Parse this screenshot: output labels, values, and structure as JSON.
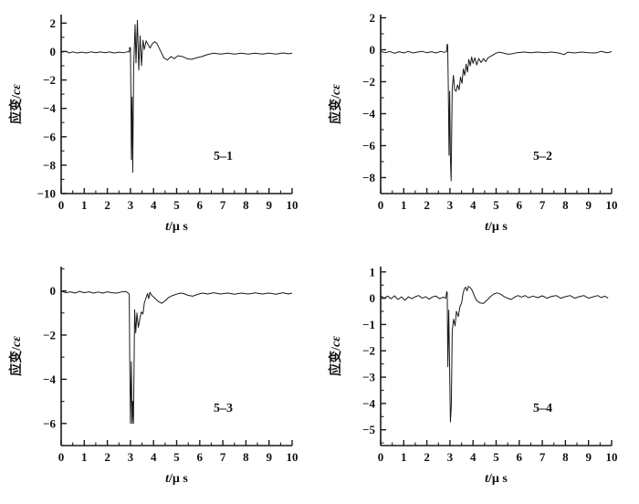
{
  "style": {
    "background": "#ffffff",
    "line_color": "#1a1a1a",
    "text_color": "#111111"
  },
  "figure_title": "",
  "chart_data": [
    {
      "type": "line",
      "label": "5–1",
      "ylabel": "应变/cε",
      "xlabel": "t/μ s",
      "xlim": [
        0,
        10
      ],
      "ylim": [
        -10,
        2.6
      ],
      "xticks": [
        0,
        1,
        2,
        3,
        4,
        5,
        6,
        7,
        8,
        9,
        10
      ],
      "x_minor_step": 0.5,
      "yticks": [
        2,
        0,
        -2,
        -4,
        -6,
        -8,
        -10
      ],
      "y_minor_ticks": [
        1,
        -1,
        -3,
        -5,
        -7,
        -9
      ],
      "grid": false,
      "legend": "none",
      "points": [
        [
          0,
          -0.05
        ],
        [
          0.2,
          0.02
        ],
        [
          0.35,
          -0.1
        ],
        [
          0.5,
          -0.02
        ],
        [
          0.7,
          -0.1
        ],
        [
          0.9,
          -0.04
        ],
        [
          1.1,
          -0.1
        ],
        [
          1.3,
          -0.02
        ],
        [
          1.5,
          -0.08
        ],
        [
          1.7,
          -0.03
        ],
        [
          1.9,
          -0.09
        ],
        [
          2.1,
          -0.03
        ],
        [
          2.3,
          -0.1
        ],
        [
          2.5,
          -0.04
        ],
        [
          2.7,
          -0.08
        ],
        [
          2.85,
          -0.02
        ],
        [
          2.95,
          -0.02
        ],
        [
          2.97,
          0.3
        ],
        [
          3.0,
          0.25
        ],
        [
          3.02,
          -3.1
        ],
        [
          3.04,
          -7.6
        ],
        [
          3.07,
          -3.2
        ],
        [
          3.1,
          -8.5
        ],
        [
          3.14,
          -1.2
        ],
        [
          3.2,
          1.9
        ],
        [
          3.24,
          -0.8
        ],
        [
          3.3,
          2.2
        ],
        [
          3.36,
          -1.3
        ],
        [
          3.42,
          1.1
        ],
        [
          3.48,
          -1.0
        ],
        [
          3.54,
          0.8
        ],
        [
          3.6,
          0.15
        ],
        [
          3.68,
          0.75
        ],
        [
          3.76,
          0.5
        ],
        [
          3.85,
          0.25
        ],
        [
          3.95,
          0.55
        ],
        [
          4.05,
          0.7
        ],
        [
          4.15,
          0.55
        ],
        [
          4.3,
          0.05
        ],
        [
          4.45,
          -0.45
        ],
        [
          4.6,
          -0.6
        ],
        [
          4.75,
          -0.35
        ],
        [
          4.9,
          -0.5
        ],
        [
          5.05,
          -0.3
        ],
        [
          5.25,
          -0.35
        ],
        [
          5.45,
          -0.5
        ],
        [
          5.65,
          -0.55
        ],
        [
          5.85,
          -0.45
        ],
        [
          6.1,
          -0.35
        ],
        [
          6.35,
          -0.2
        ],
        [
          6.6,
          -0.12
        ],
        [
          6.9,
          -0.18
        ],
        [
          7.2,
          -0.12
        ],
        [
          7.5,
          -0.18
        ],
        [
          7.8,
          -0.12
        ],
        [
          8.1,
          -0.18
        ],
        [
          8.4,
          -0.12
        ],
        [
          8.7,
          -0.18
        ],
        [
          9.0,
          -0.12
        ],
        [
          9.3,
          -0.18
        ],
        [
          9.6,
          -0.1
        ],
        [
          9.85,
          -0.16
        ],
        [
          10,
          -0.12
        ]
      ]
    },
    {
      "type": "line",
      "label": "5–2",
      "ylabel": "应变/cε",
      "xlabel": "t/μ s",
      "xlim": [
        0,
        10
      ],
      "ylim": [
        -9,
        2.2
      ],
      "xticks": [
        0,
        1,
        2,
        3,
        4,
        5,
        6,
        7,
        8,
        9,
        10
      ],
      "x_minor_step": 0.5,
      "yticks": [
        2,
        0,
        -2,
        -4,
        -6,
        -8
      ],
      "y_minor_ticks": [
        1,
        -1,
        -3,
        -5,
        -7,
        -9
      ],
      "grid": false,
      "legend": "none",
      "points": [
        [
          0,
          -0.1
        ],
        [
          0.2,
          -0.18
        ],
        [
          0.4,
          -0.1
        ],
        [
          0.6,
          -0.22
        ],
        [
          0.8,
          -0.12
        ],
        [
          1.0,
          -0.2
        ],
        [
          1.2,
          -0.1
        ],
        [
          1.4,
          -0.2
        ],
        [
          1.6,
          -0.14
        ],
        [
          1.8,
          -0.1
        ],
        [
          2.0,
          -0.18
        ],
        [
          2.2,
          -0.12
        ],
        [
          2.4,
          -0.2
        ],
        [
          2.6,
          -0.1
        ],
        [
          2.75,
          -0.16
        ],
        [
          2.85,
          -0.12
        ],
        [
          2.88,
          0.35
        ],
        [
          2.9,
          0.3
        ],
        [
          2.93,
          -2.3
        ],
        [
          2.96,
          -6.6
        ],
        [
          2.99,
          -2.6
        ],
        [
          3.02,
          -6.8
        ],
        [
          3.05,
          -8.2
        ],
        [
          3.1,
          -2.4
        ],
        [
          3.15,
          -1.6
        ],
        [
          3.2,
          -2.5
        ],
        [
          3.27,
          -2.6
        ],
        [
          3.33,
          -2.2
        ],
        [
          3.4,
          -2.5
        ],
        [
          3.46,
          -1.7
        ],
        [
          3.52,
          -2.1
        ],
        [
          3.58,
          -1.2
        ],
        [
          3.64,
          -1.6
        ],
        [
          3.7,
          -0.9
        ],
        [
          3.76,
          -1.4
        ],
        [
          3.82,
          -0.6
        ],
        [
          3.88,
          -1.0
        ],
        [
          3.94,
          -0.45
        ],
        [
          4.0,
          -0.85
        ],
        [
          4.08,
          -0.5
        ],
        [
          4.16,
          -0.95
        ],
        [
          4.25,
          -0.55
        ],
        [
          4.35,
          -0.8
        ],
        [
          4.45,
          -0.55
        ],
        [
          4.55,
          -0.75
        ],
        [
          4.65,
          -0.5
        ],
        [
          4.8,
          -0.38
        ],
        [
          4.95,
          -0.25
        ],
        [
          5.1,
          -0.15
        ],
        [
          5.3,
          -0.2
        ],
        [
          5.5,
          -0.28
        ],
        [
          5.7,
          -0.25
        ],
        [
          5.9,
          -0.18
        ],
        [
          6.2,
          -0.14
        ],
        [
          6.5,
          -0.18
        ],
        [
          6.8,
          -0.14
        ],
        [
          7.1,
          -0.18
        ],
        [
          7.4,
          -0.14
        ],
        [
          7.7,
          -0.2
        ],
        [
          7.95,
          -0.3
        ],
        [
          8.1,
          -0.15
        ],
        [
          8.4,
          -0.2
        ],
        [
          8.7,
          -0.14
        ],
        [
          9.0,
          -0.18
        ],
        [
          9.3,
          -0.2
        ],
        [
          9.55,
          -0.1
        ],
        [
          9.8,
          -0.18
        ],
        [
          10,
          -0.12
        ]
      ]
    },
    {
      "type": "line",
      "label": "5–3",
      "ylabel": "应变/cε",
      "xlabel": "t/μ s",
      "xlim": [
        0,
        10
      ],
      "ylim": [
        -7,
        1.1
      ],
      "xticks": [
        0,
        1,
        2,
        3,
        4,
        5,
        6,
        7,
        8,
        9,
        10
      ],
      "x_minor_step": 0.5,
      "yticks": [
        0,
        -2,
        -4,
        -6
      ],
      "y_minor_ticks": [
        1,
        -1,
        -3,
        -5,
        -7
      ],
      "grid": false,
      "legend": "none",
      "points": [
        [
          0,
          0.0
        ],
        [
          0.2,
          -0.08
        ],
        [
          0.4,
          -0.04
        ],
        [
          0.6,
          -0.1
        ],
        [
          0.8,
          -0.02
        ],
        [
          1.0,
          -0.08
        ],
        [
          1.2,
          -0.04
        ],
        [
          1.4,
          -0.1
        ],
        [
          1.6,
          -0.05
        ],
        [
          1.8,
          -0.1
        ],
        [
          2.0,
          -0.04
        ],
        [
          2.2,
          -0.08
        ],
        [
          2.4,
          -0.1
        ],
        [
          2.6,
          -0.05
        ],
        [
          2.8,
          -0.03
        ],
        [
          2.9,
          -0.1
        ],
        [
          2.95,
          -0.15
        ],
        [
          2.97,
          -3.0
        ],
        [
          3.0,
          -6.0
        ],
        [
          3.04,
          -3.2
        ],
        [
          3.07,
          -6.0
        ],
        [
          3.1,
          -5.0
        ],
        [
          3.13,
          -6.0
        ],
        [
          3.18,
          -0.85
        ],
        [
          3.23,
          -1.9
        ],
        [
          3.28,
          -1.0
        ],
        [
          3.34,
          -1.65
        ],
        [
          3.4,
          -1.3
        ],
        [
          3.47,
          -0.95
        ],
        [
          3.54,
          -1.05
        ],
        [
          3.6,
          -0.55
        ],
        [
          3.68,
          -0.3
        ],
        [
          3.74,
          -0.12
        ],
        [
          3.79,
          -0.35
        ],
        [
          3.84,
          -0.06
        ],
        [
          3.92,
          -0.2
        ],
        [
          4.05,
          -0.32
        ],
        [
          4.2,
          -0.48
        ],
        [
          4.35,
          -0.56
        ],
        [
          4.5,
          -0.45
        ],
        [
          4.65,
          -0.3
        ],
        [
          4.8,
          -0.22
        ],
        [
          5.0,
          -0.15
        ],
        [
          5.15,
          -0.1
        ],
        [
          5.3,
          -0.12
        ],
        [
          5.5,
          -0.2
        ],
        [
          5.7,
          -0.24
        ],
        [
          5.9,
          -0.16
        ],
        [
          6.1,
          -0.1
        ],
        [
          6.35,
          -0.14
        ],
        [
          6.6,
          -0.08
        ],
        [
          6.9,
          -0.14
        ],
        [
          7.2,
          -0.1
        ],
        [
          7.5,
          -0.15
        ],
        [
          7.8,
          -0.1
        ],
        [
          8.1,
          -0.14
        ],
        [
          8.4,
          -0.09
        ],
        [
          8.7,
          -0.14
        ],
        [
          9.0,
          -0.1
        ],
        [
          9.3,
          -0.15
        ],
        [
          9.6,
          -0.08
        ],
        [
          9.85,
          -0.14
        ],
        [
          10,
          -0.1
        ]
      ]
    },
    {
      "type": "line",
      "label": "5–4",
      "ylabel": "应变/cε",
      "xlabel": "t/μ s",
      "xlim": [
        0,
        10
      ],
      "ylim": [
        -5.6,
        1.2
      ],
      "xticks": [
        0,
        1,
        2,
        3,
        4,
        5,
        6,
        7,
        8,
        9,
        10
      ],
      "x_minor_step": 0.5,
      "yticks": [
        1,
        0,
        -1,
        -2,
        -3,
        -4,
        -5
      ],
      "y_minor_ticks": [
        0.5,
        -0.5,
        -1.5,
        -2.5,
        -3.5,
        -4.5,
        -5.5
      ],
      "grid": false,
      "legend": "none",
      "points": [
        [
          0,
          0.1
        ],
        [
          0.15,
          0.0
        ],
        [
          0.3,
          0.08
        ],
        [
          0.45,
          -0.02
        ],
        [
          0.6,
          0.09
        ],
        [
          0.75,
          -0.05
        ],
        [
          0.9,
          0.05
        ],
        [
          1.05,
          -0.08
        ],
        [
          1.2,
          0.05
        ],
        [
          1.35,
          -0.02
        ],
        [
          1.5,
          0.06
        ],
        [
          1.65,
          0.1
        ],
        [
          1.8,
          0.0
        ],
        [
          1.95,
          0.06
        ],
        [
          2.1,
          -0.04
        ],
        [
          2.25,
          0.05
        ],
        [
          2.4,
          0.08
        ],
        [
          2.55,
          -0.02
        ],
        [
          2.7,
          0.04
        ],
        [
          2.82,
          0.0
        ],
        [
          2.86,
          0.25
        ],
        [
          2.88,
          0.2
        ],
        [
          2.91,
          -2.6
        ],
        [
          2.95,
          -0.45
        ],
        [
          2.98,
          -2.3
        ],
        [
          3.02,
          -4.7
        ],
        [
          3.06,
          -4.1
        ],
        [
          3.1,
          -1.25
        ],
        [
          3.16,
          -0.8
        ],
        [
          3.22,
          -1.05
        ],
        [
          3.28,
          -0.5
        ],
        [
          3.36,
          -0.7
        ],
        [
          3.44,
          -0.3
        ],
        [
          3.5,
          -0.2
        ],
        [
          3.56,
          0.15
        ],
        [
          3.62,
          0.35
        ],
        [
          3.68,
          0.42
        ],
        [
          3.74,
          0.28
        ],
        [
          3.8,
          0.45
        ],
        [
          3.88,
          0.4
        ],
        [
          3.96,
          0.3
        ],
        [
          4.05,
          0.1
        ],
        [
          4.15,
          -0.08
        ],
        [
          4.3,
          -0.18
        ],
        [
          4.45,
          -0.2
        ],
        [
          4.6,
          -0.08
        ],
        [
          4.75,
          0.06
        ],
        [
          4.9,
          0.16
        ],
        [
          5.05,
          0.2
        ],
        [
          5.2,
          0.15
        ],
        [
          5.35,
          0.06
        ],
        [
          5.5,
          0.0
        ],
        [
          5.65,
          -0.05
        ],
        [
          5.8,
          0.04
        ],
        [
          5.95,
          0.1
        ],
        [
          6.1,
          0.04
        ],
        [
          6.25,
          0.1
        ],
        [
          6.4,
          0.02
        ],
        [
          6.6,
          0.08
        ],
        [
          6.8,
          0.02
        ],
        [
          7.0,
          0.09
        ],
        [
          7.2,
          0.0
        ],
        [
          7.4,
          0.07
        ],
        [
          7.6,
          0.1
        ],
        [
          7.8,
          0.0
        ],
        [
          8.0,
          0.06
        ],
        [
          8.2,
          0.1
        ],
        [
          8.4,
          0.0
        ],
        [
          8.6,
          0.06
        ],
        [
          8.8,
          0.1
        ],
        [
          9.0,
          0.0
        ],
        [
          9.2,
          0.05
        ],
        [
          9.4,
          0.1
        ],
        [
          9.55,
          0.02
        ],
        [
          9.7,
          0.08
        ],
        [
          9.85,
          0.0
        ]
      ]
    }
  ]
}
